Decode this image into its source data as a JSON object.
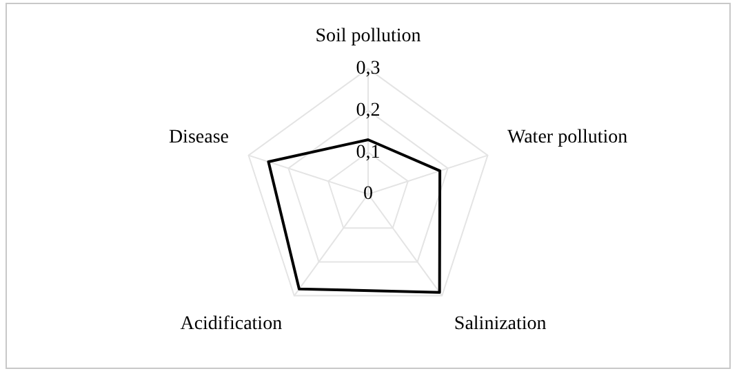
{
  "chart_data": {
    "type": "radar",
    "categories": [
      "Soil pollution",
      "Water pollution",
      "Salinization",
      "Acidification",
      "Disease"
    ],
    "series": [
      {
        "color": "#000000",
        "values": [
          0.13,
          0.18,
          0.29,
          0.28,
          0.25
        ]
      }
    ],
    "ylim": [
      0,
      0.3
    ],
    "yticks": [
      {
        "value": 0,
        "label": "0"
      },
      {
        "value": 0.1,
        "label": "0,1"
      },
      {
        "value": 0.2,
        "label": "0,2"
      },
      {
        "value": 0.3,
        "label": "0,3"
      }
    ],
    "grid": true,
    "legend": false,
    "marker": "none",
    "line_style": "solid"
  }
}
